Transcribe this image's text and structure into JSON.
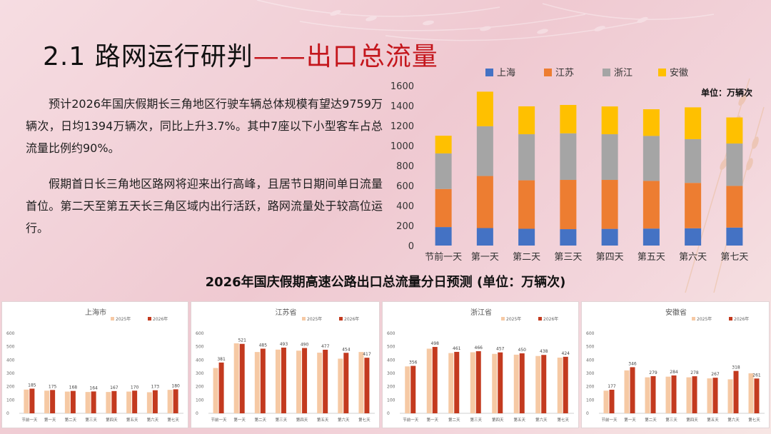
{
  "title": {
    "main": "2.1 路网运行研判",
    "highlight": "——出口总流量"
  },
  "paragraphs": [
    "预计2026年国庆假期长三角地区行驶车辆总体规模有望达9759万辆次，日均1394万辆次，同比上升3.7%。其中7座以下小型客车占总流量比例约90%。",
    "假期首日长三角地区路网将迎来出行高峰，且居节日期间单日流量首位。第二天至第五天长三角区域内出行活跃，路网流量处于较高位运行。"
  ],
  "chart_data": [
    {
      "type": "bar",
      "stacked": true,
      "unit_label": "单位：万辆次",
      "categories": [
        "节前一天",
        "第一天",
        "第二天",
        "第三天",
        "第四天",
        "第五天",
        "第六天",
        "第七天"
      ],
      "ylim": [
        0,
        1600
      ],
      "yticks": [
        0,
        200,
        400,
        600,
        800,
        1000,
        1200,
        1400,
        1600
      ],
      "legend_position": "top",
      "series": [
        {
          "name": "上海",
          "color": "#4472c4",
          "values": [
            185,
            175,
            168,
            164,
            167,
            170,
            173,
            180
          ]
        },
        {
          "name": "江苏",
          "color": "#ed7d31",
          "values": [
            381,
            521,
            485,
            493,
            490,
            477,
            454,
            417
          ]
        },
        {
          "name": "浙江",
          "color": "#a5a5a5",
          "values": [
            356,
            498,
            461,
            466,
            457,
            450,
            438,
            424
          ]
        },
        {
          "name": "安徽",
          "color": "#ffc000",
          "values": [
            177,
            346,
            279,
            284,
            278,
            267,
            318,
            261
          ]
        }
      ]
    },
    {
      "type": "bar",
      "title": "上海市",
      "categories": [
        "节前一天",
        "第一天",
        "第二天",
        "第三天",
        "第四天",
        "第五天",
        "第六天",
        "第七天"
      ],
      "ylim": [
        0,
        600
      ],
      "yticks": [
        0,
        100,
        200,
        300,
        400,
        500,
        600
      ],
      "series": [
        {
          "name": "2025年",
          "color": "#f6c9a4",
          "values": [
            178,
            170,
            163,
            160,
            160,
            163,
            158,
            176
          ]
        },
        {
          "name": "2026年",
          "color": "#c33a1f",
          "values": [
            185,
            175,
            168,
            164,
            167,
            170,
            173,
            180
          ]
        }
      ],
      "data_labels": [
        185,
        175,
        168,
        164,
        167,
        170,
        173,
        180
      ]
    },
    {
      "type": "bar",
      "title": "江苏省",
      "categories": [
        "节前一天",
        "第一天",
        "第二天",
        "第三天",
        "第四天",
        "第五天",
        "第六天",
        "第七天"
      ],
      "ylim": [
        0,
        600
      ],
      "yticks": [
        0,
        100,
        200,
        300,
        400,
        500,
        600
      ],
      "series": [
        {
          "name": "2025年",
          "color": "#f6c9a4",
          "values": [
            340,
            525,
            460,
            478,
            470,
            455,
            410,
            460
          ]
        },
        {
          "name": "2026年",
          "color": "#c33a1f",
          "values": [
            381,
            521,
            485,
            493,
            490,
            477,
            454,
            417
          ]
        }
      ],
      "data_labels": [
        381,
        521,
        485,
        493,
        490,
        477,
        454,
        417
      ]
    },
    {
      "type": "bar",
      "title": "浙江省",
      "categories": [
        "节前一天",
        "第一天",
        "第二天",
        "第三天",
        "第四天",
        "第五天",
        "第六天",
        "第七天"
      ],
      "ylim": [
        0,
        600
      ],
      "yticks": [
        0,
        100,
        200,
        300,
        400,
        500,
        600
      ],
      "series": [
        {
          "name": "2025年",
          "color": "#f6c9a4",
          "values": [
            352,
            485,
            452,
            458,
            446,
            440,
            430,
            418
          ]
        },
        {
          "name": "2026年",
          "color": "#c33a1f",
          "values": [
            356,
            498,
            461,
            466,
            457,
            450,
            438,
            424
          ]
        }
      ],
      "data_labels": [
        356,
        498,
        461,
        466,
        457,
        450,
        438,
        424
      ]
    },
    {
      "type": "bar",
      "title": "安徽省",
      "categories": [
        "节前一天",
        "第一天",
        "第二天",
        "第三天",
        "第四天",
        "第五天",
        "第六天",
        "第七天"
      ],
      "ylim": [
        0,
        600
      ],
      "yticks": [
        0,
        100,
        200,
        300,
        400,
        500,
        600
      ],
      "series": [
        {
          "name": "2025年",
          "color": "#f6c9a4",
          "values": [
            170,
            322,
            270,
            275,
            270,
            262,
            255,
            300
          ]
        },
        {
          "name": "2026年",
          "color": "#c33a1f",
          "values": [
            177,
            346,
            279,
            284,
            278,
            267,
            318,
            261
          ]
        }
      ],
      "data_labels": [
        177,
        346,
        279,
        284,
        278,
        267,
        318,
        261
      ]
    }
  ],
  "section_title": "2026年国庆假期高速公路出口总流量分日预测 (单位：万辆次)"
}
